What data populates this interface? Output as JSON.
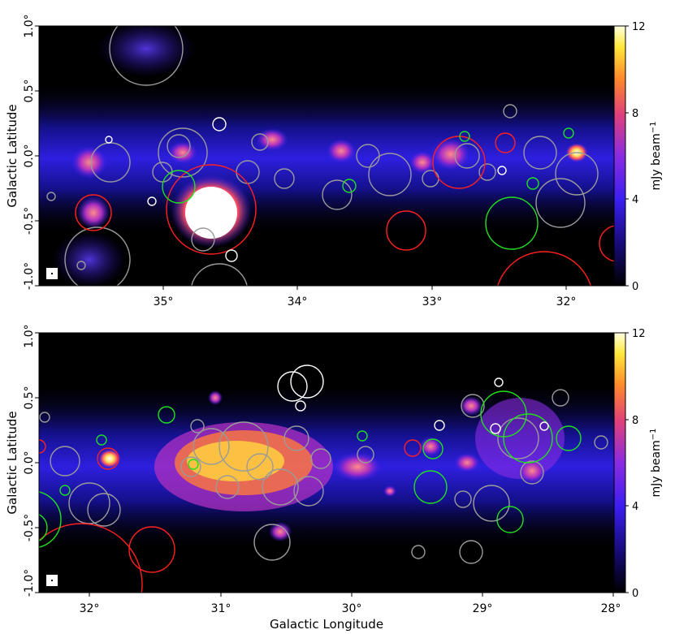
{
  "figure": {
    "panels": [
      {
        "id": "top",
        "xlabel": "",
        "ylabel": "Galactic Latitude",
        "x_ticks": [
          "35°",
          "34°",
          "33°",
          "32°"
        ],
        "y_ticks": [
          "1.0°",
          "0.5°",
          "0.0°",
          "-0.5°",
          "-1.0°"
        ],
        "colorbar": {
          "label": "mJy beam",
          "label_sup": "−1",
          "ticks": [
            "12",
            "8",
            "4",
            "0"
          ],
          "range": [
            0,
            12
          ]
        }
      },
      {
        "id": "bottom",
        "xlabel": "Galactic Longitude",
        "ylabel": "Galactic Latitude",
        "x_ticks": [
          "32°",
          "31°",
          "30°",
          "29°",
          "28°"
        ],
        "y_ticks": [
          "1.0°",
          "0.5°",
          "0.0°",
          "-0.5°",
          "-1.0°"
        ],
        "colorbar": {
          "label": "mJy beam",
          "label_sup": "−1",
          "ticks": [
            "12",
            "8",
            "4",
            "0"
          ],
          "range": [
            0,
            12
          ]
        }
      }
    ],
    "colormap": [
      "#000000",
      "#1a0a8c",
      "#3a1ff0",
      "#8a2be2",
      "#e0407a",
      "#ff8a2a",
      "#ffe83a",
      "#ffffe0"
    ],
    "circle_colors": {
      "catalog": "#9a9a9a",
      "red": "#ff2020",
      "green": "#20e020",
      "white": "#ffffff"
    }
  }
}
